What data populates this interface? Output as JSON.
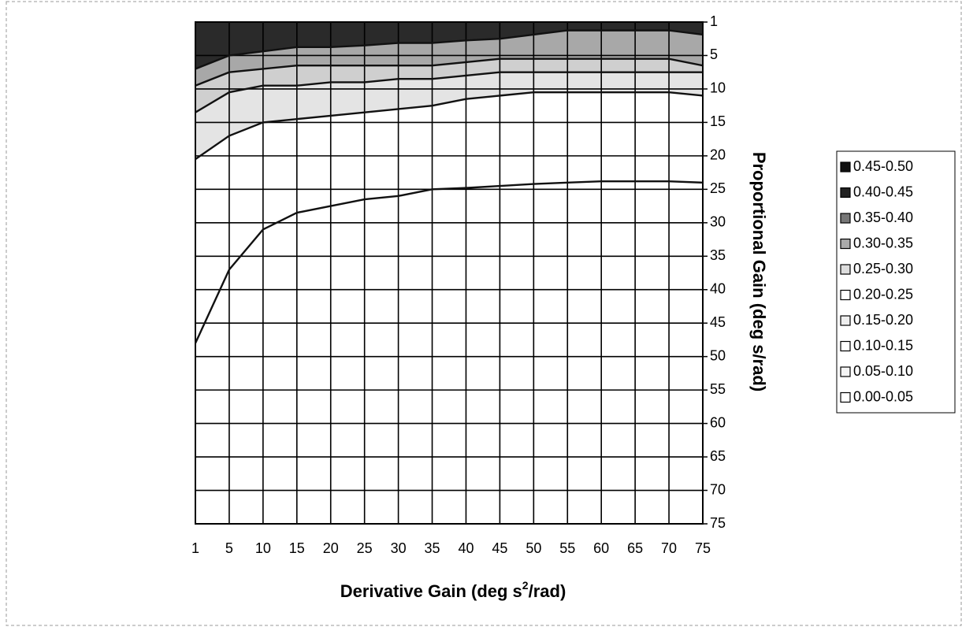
{
  "chart_data": {
    "type": "contour",
    "x_label": [
      "Derivative Gain (deg s",
      "2",
      "/rad)"
    ],
    "y_label": "Proportional Gain (deg s/rad)",
    "x": [
      1,
      5,
      10,
      15,
      20,
      25,
      30,
      35,
      40,
      45,
      50,
      55,
      60,
      65,
      70,
      75
    ],
    "y": [
      1,
      5,
      10,
      15,
      20,
      25,
      30,
      35,
      40,
      45,
      50,
      55,
      60,
      65,
      70,
      75
    ],
    "y_inverted": true,
    "grid": true,
    "series": [
      {
        "color": "#ffffff",
        "values": [
          48,
          37,
          31,
          28.5,
          27.5,
          26.5,
          26,
          25,
          24.8,
          24.5,
          24.2,
          24,
          23.8,
          23.8,
          23.8,
          24
        ]
      },
      {
        "color": "#e4e4e4",
        "values": [
          20.5,
          17,
          15,
          14.5,
          14,
          13.5,
          13,
          12.5,
          11.5,
          11,
          10.5,
          10.5,
          10.5,
          10.5,
          10.5,
          11
        ]
      },
      {
        "color": "#cfcfcf",
        "values": [
          13.5,
          10.5,
          9.5,
          9.5,
          9,
          9,
          8.5,
          8.5,
          8,
          7.5,
          7.5,
          7.5,
          7.5,
          7.5,
          7.5,
          7.5
        ]
      },
      {
        "color": "#a8a8a8",
        "values": [
          9.5,
          7.5,
          7,
          6.5,
          6.5,
          6.5,
          6.5,
          6.5,
          6,
          5.5,
          5.5,
          5.5,
          5.5,
          5.5,
          5.5,
          6.5
        ]
      },
      {
        "color": "#2a2a2a",
        "values": [
          7,
          5,
          4.5,
          4,
          4,
          3.8,
          3.5,
          3.5,
          3.2,
          3,
          2.5,
          2,
          2,
          2,
          2,
          2.5
        ]
      }
    ],
    "legend": [
      {
        "name": "0.45-0.50",
        "color": "#111111"
      },
      {
        "name": "0.40-0.45",
        "color": "#222222"
      },
      {
        "name": "0.35-0.40",
        "color": "#777777"
      },
      {
        "name": "0.30-0.35",
        "color": "#aaaaaa"
      },
      {
        "name": "0.25-0.30",
        "color": "#dddddd"
      },
      {
        "name": "0.20-0.25",
        "color": "#ffffff"
      },
      {
        "name": "0.15-0.20",
        "color": "#eeeeee"
      },
      {
        "name": "0.10-0.15",
        "color": "#ffffff"
      },
      {
        "name": "0.05-0.10",
        "color": "#f4f4f4"
      },
      {
        "name": "0.00-0.05",
        "color": "#ffffff"
      }
    ]
  }
}
